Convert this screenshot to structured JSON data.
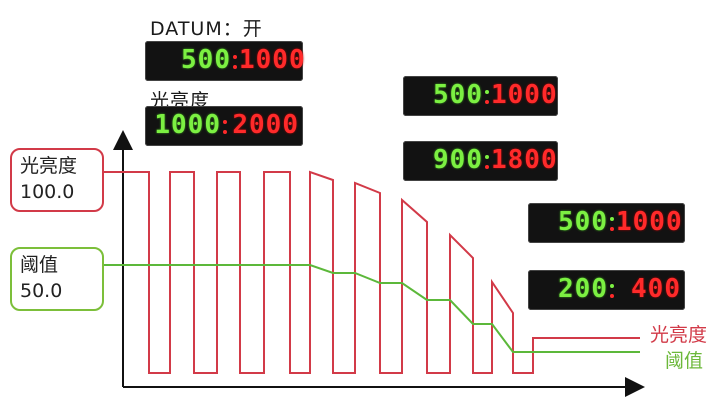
{
  "header": {
    "datum_label": "DATUM：开",
    "brightness_label": "光亮度"
  },
  "displays": [
    {
      "green": "500",
      "red": "1000"
    },
    {
      "green": "1000",
      "red": "2000"
    },
    {
      "green": "500",
      "red": "1000"
    },
    {
      "green": "900",
      "red": "1800"
    },
    {
      "green": "500",
      "red": "1000"
    },
    {
      "green": "200",
      "red": "400"
    }
  ],
  "callouts": {
    "brightness": {
      "title": "光亮度",
      "value": "100.0"
    },
    "threshold": {
      "title": "阈值",
      "value": "50.0"
    }
  },
  "legend": {
    "brightness": "光亮度",
    "threshold": "阈值"
  },
  "colors": {
    "brightness_line": "#d23a48",
    "threshold_line": "#5cb83a",
    "display_bg": "#121212",
    "digit_green": "#7cf042",
    "digit_red": "#ff2a2a"
  }
}
